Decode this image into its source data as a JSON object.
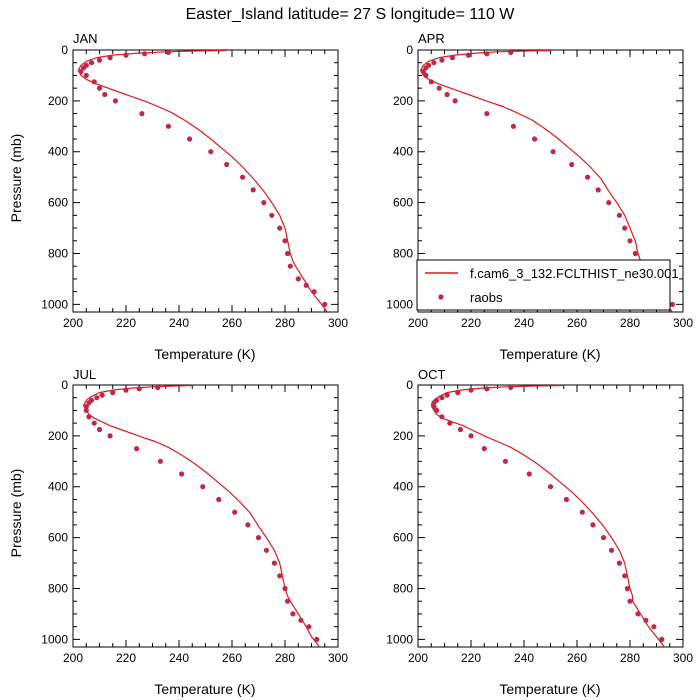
{
  "figure": {
    "title": "Easter_Island  latitude= 27 S longitude= 110 W"
  },
  "colors": {
    "model_line": "#e0191e",
    "obs_marker": "#c0284a",
    "axis": "#000000"
  },
  "legend": {
    "placement": "lower-right (APR panel)",
    "model_label": "f.cam6_3_132.FCLTHIST_ne30.001",
    "obs_label": "raobs"
  },
  "chart_data": [
    {
      "type": "line",
      "panel_label": "JAN",
      "xlabel": "Temperature (K)",
      "ylabel": "Pressure (mb)",
      "xlim": [
        200,
        300
      ],
      "ylim": [
        1030,
        0
      ],
      "xticks": [
        200,
        220,
        240,
        260,
        280,
        300
      ],
      "yticks": [
        0,
        200,
        400,
        600,
        800,
        1000
      ],
      "series": [
        {
          "kind": "line",
          "x": [
            258,
            245,
            235,
            225,
            215,
            209,
            205,
            203,
            202,
            203,
            205,
            208,
            212,
            216,
            220,
            224,
            228,
            232,
            237,
            242,
            247,
            252,
            256,
            260,
            264,
            268,
            272,
            275,
            278,
            280,
            281,
            282,
            283,
            284,
            287,
            290,
            293,
            296
          ],
          "y": [
            2,
            4,
            7,
            12,
            20,
            30,
            45,
            60,
            80,
            100,
            115,
            130,
            145,
            160,
            175,
            190,
            205,
            222,
            245,
            275,
            310,
            350,
            385,
            420,
            460,
            505,
            555,
            600,
            650,
            700,
            750,
            800,
            830,
            850,
            900,
            950,
            990,
            1030
          ]
        },
        {
          "kind": "scatter",
          "x": [
            236,
            227,
            220,
            214,
            210,
            207,
            205,
            204,
            203,
            205,
            208,
            210,
            212,
            216,
            226,
            236,
            244,
            252,
            258,
            264,
            268,
            272,
            275,
            278,
            280,
            281,
            282,
            285,
            288,
            291,
            295
          ],
          "y": [
            10,
            15,
            20,
            30,
            40,
            50,
            60,
            70,
            85,
            100,
            125,
            150,
            175,
            200,
            250,
            300,
            350,
            400,
            450,
            500,
            550,
            600,
            650,
            700,
            750,
            800,
            850,
            900,
            925,
            950,
            1000
          ]
        }
      ]
    },
    {
      "type": "line",
      "panel_label": "APR",
      "xlabel": "Temperature (K)",
      "ylabel": "",
      "xlim": [
        200,
        300
      ],
      "ylim": [
        1030,
        0
      ],
      "xticks": [
        200,
        220,
        240,
        260,
        280,
        300
      ],
      "yticks": [
        0,
        200,
        400,
        600,
        800,
        1000
      ],
      "series": [
        {
          "kind": "line",
          "x": [
            250,
            240,
            230,
            222,
            214,
            208,
            204,
            202,
            201,
            202,
            204,
            207,
            211,
            215,
            219,
            223,
            227,
            232,
            237,
            243,
            248,
            253,
            257,
            261,
            265,
            269,
            272,
            275,
            278,
            280,
            282,
            283,
            284,
            285,
            288,
            291,
            293,
            296
          ],
          "y": [
            2,
            4,
            7,
            12,
            20,
            30,
            45,
            60,
            80,
            100,
            115,
            130,
            145,
            160,
            175,
            190,
            205,
            222,
            245,
            275,
            310,
            350,
            385,
            420,
            460,
            505,
            555,
            600,
            650,
            700,
            750,
            800,
            830,
            850,
            900,
            950,
            990,
            1030
          ]
        },
        {
          "kind": "scatter",
          "x": [
            235,
            226,
            219,
            213,
            209,
            206,
            204,
            203,
            202,
            203,
            205,
            208,
            211,
            214,
            226,
            236,
            244,
            251,
            258,
            264,
            268,
            272,
            276,
            278,
            280,
            282,
            284,
            286,
            289,
            292,
            296
          ],
          "y": [
            10,
            15,
            20,
            30,
            40,
            50,
            60,
            70,
            85,
            100,
            125,
            150,
            175,
            200,
            250,
            300,
            350,
            400,
            450,
            500,
            550,
            600,
            650,
            700,
            750,
            800,
            850,
            900,
            925,
            950,
            1000
          ]
        }
      ]
    },
    {
      "type": "line",
      "panel_label": "JUL",
      "xlabel": "Temperature (K)",
      "ylabel": "Pressure (mb)",
      "xlim": [
        200,
        300
      ],
      "ylim": [
        1030,
        0
      ],
      "xticks": [
        200,
        220,
        240,
        260,
        280,
        300
      ],
      "yticks": [
        0,
        200,
        400,
        600,
        800,
        1000
      ],
      "series": [
        {
          "kind": "line",
          "x": [
            245,
            238,
            230,
            222,
            215,
            210,
            207,
            205,
            204,
            205,
            206,
            208,
            211,
            214,
            218,
            222,
            226,
            231,
            236,
            241,
            246,
            251,
            255,
            259,
            263,
            267,
            270,
            273,
            276,
            278,
            279,
            280,
            281,
            282,
            285,
            288,
            290,
            293
          ],
          "y": [
            2,
            4,
            7,
            12,
            20,
            30,
            45,
            60,
            80,
            100,
            115,
            130,
            145,
            160,
            175,
            190,
            205,
            222,
            245,
            275,
            310,
            350,
            385,
            420,
            460,
            505,
            555,
            600,
            650,
            700,
            750,
            800,
            830,
            850,
            900,
            950,
            990,
            1030
          ]
        },
        {
          "kind": "scatter",
          "x": [
            232,
            225,
            220,
            215,
            211,
            209,
            207,
            206,
            205,
            205,
            206,
            208,
            210,
            214,
            224,
            233,
            241,
            249,
            255,
            261,
            266,
            270,
            273,
            276,
            278,
            280,
            281,
            283,
            286,
            289,
            292
          ],
          "y": [
            10,
            15,
            20,
            30,
            40,
            50,
            60,
            70,
            85,
            100,
            125,
            150,
            175,
            200,
            250,
            300,
            350,
            400,
            450,
            500,
            550,
            600,
            650,
            700,
            750,
            800,
            850,
            900,
            925,
            950,
            1000
          ]
        }
      ]
    },
    {
      "type": "line",
      "panel_label": "OCT",
      "xlabel": "Temperature (K)",
      "ylabel": "",
      "xlim": [
        200,
        300
      ],
      "ylim": [
        1030,
        0
      ],
      "xticks": [
        200,
        220,
        240,
        260,
        280,
        300
      ],
      "yticks": [
        0,
        200,
        400,
        600,
        800,
        1000
      ],
      "series": [
        {
          "kind": "line",
          "x": [
            255,
            243,
            233,
            224,
            216,
            211,
            208,
            206,
            205,
            206,
            207,
            209,
            213,
            217,
            220,
            223,
            226,
            230,
            235,
            240,
            245,
            250,
            254,
            258,
            262,
            266,
            270,
            273,
            276,
            278,
            279,
            280,
            281,
            281,
            284,
            287,
            290,
            293
          ],
          "y": [
            2,
            4,
            7,
            12,
            20,
            30,
            45,
            60,
            80,
            100,
            115,
            130,
            145,
            160,
            175,
            190,
            205,
            222,
            245,
            275,
            310,
            350,
            385,
            420,
            460,
            505,
            555,
            600,
            650,
            700,
            750,
            800,
            830,
            850,
            900,
            950,
            990,
            1030
          ]
        },
        {
          "kind": "scatter",
          "x": [
            235,
            226,
            220,
            215,
            211,
            209,
            207,
            206,
            206,
            207,
            209,
            212,
            216,
            220,
            225,
            233,
            242,
            250,
            256,
            262,
            266,
            270,
            273,
            276,
            278,
            279,
            280,
            283,
            286,
            289,
            292
          ],
          "y": [
            10,
            15,
            20,
            30,
            40,
            50,
            60,
            70,
            85,
            100,
            125,
            150,
            175,
            200,
            250,
            300,
            350,
            400,
            450,
            500,
            550,
            600,
            650,
            700,
            750,
            800,
            850,
            900,
            925,
            950,
            1000
          ]
        }
      ]
    }
  ]
}
